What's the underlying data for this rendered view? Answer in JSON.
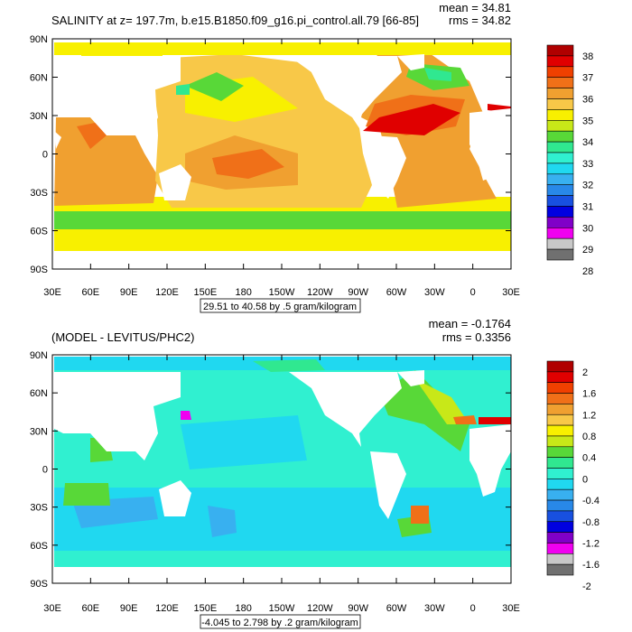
{
  "chart_data": [
    {
      "type": "heatmap",
      "title": "SALINITY at z= 197.7m, b.e15.B1850.f09_g16.pi_control.all.79 [66-85]",
      "stats": {
        "mean": "mean = 34.81",
        "rms": "rms = 34.82"
      },
      "contour_info": "29.51 to 40.58 by .5 gram/kilogram",
      "x_ticks": [
        "30E",
        "60E",
        "90E",
        "120E",
        "150E",
        "180",
        "150W",
        "120W",
        "90W",
        "60W",
        "30W",
        "0",
        "30E"
      ],
      "y_ticks": [
        "90N",
        "60N",
        "30N",
        "0",
        "30S",
        "60S",
        "90S"
      ],
      "xlim": [
        30,
        390
      ],
      "ylim": [
        -90,
        90
      ],
      "colorbar": {
        "labels": [
          "38",
          "37",
          "36",
          "35",
          "34",
          "33",
          "32",
          "31",
          "30",
          "29",
          "28"
        ],
        "colors": [
          "#b00000",
          "#e00000",
          "#f04000",
          "#f07018",
          "#f0a030",
          "#f8c848",
          "#f8f000",
          "#c8e818",
          "#58d838",
          "#30e890",
          "#30f0d0",
          "#20d8f0",
          "#38b0f0",
          "#2888e8",
          "#1850e0",
          "#0000e0",
          "#8000c8",
          "#f000f0",
          "#c8c8c8",
          "#707070"
        ]
      }
    },
    {
      "type": "heatmap",
      "title": "(MODEL - LEVITUS/PHC2)",
      "stats": {
        "mean": "mean = -0.1764",
        "rms": "rms = 0.3356"
      },
      "contour_info": "-4.045 to 2.798 by .2 gram/kilogram",
      "x_ticks": [
        "30E",
        "60E",
        "90E",
        "120E",
        "150E",
        "180",
        "150W",
        "120W",
        "90W",
        "60W",
        "30W",
        "0",
        "30E"
      ],
      "y_ticks": [
        "90N",
        "60N",
        "30N",
        "0",
        "30S",
        "60S",
        "90S"
      ],
      "xlim": [
        30,
        390
      ],
      "ylim": [
        -90,
        90
      ],
      "colorbar": {
        "labels": [
          "2",
          "1.6",
          "1.2",
          "0.8",
          "0.4",
          "0",
          "-0.4",
          "-0.8",
          "-1.2",
          "-1.6",
          "-2"
        ],
        "colors": [
          "#b00000",
          "#e00000",
          "#f04000",
          "#f07018",
          "#f0a030",
          "#f8c848",
          "#f8f000",
          "#c8e818",
          "#58d838",
          "#30e890",
          "#30f0d0",
          "#20d8f0",
          "#38b0f0",
          "#2888e8",
          "#1850e0",
          "#0000e0",
          "#8000c8",
          "#f000f0",
          "#c8c8c8",
          "#707070"
        ]
      }
    }
  ]
}
